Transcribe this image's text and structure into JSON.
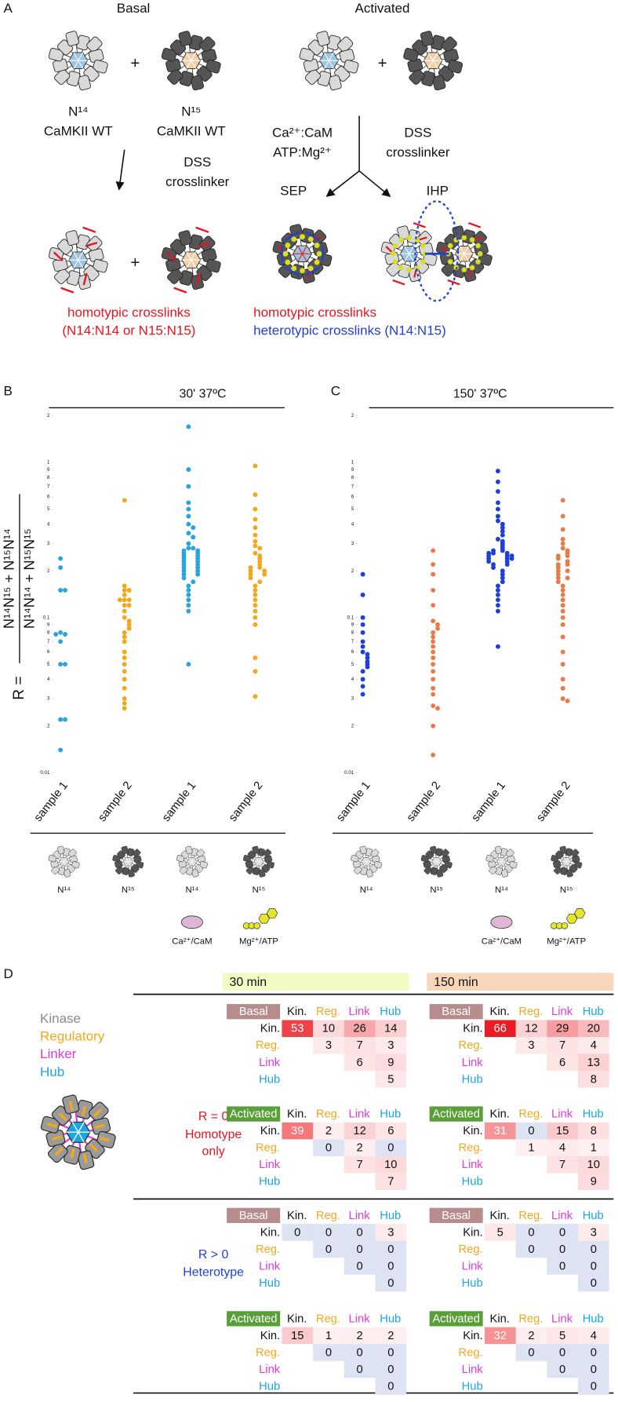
{
  "panel_a": {
    "label": "A",
    "basal": "Basal",
    "activated": "Activated",
    "plus": "+",
    "n14": "N¹⁴",
    "n15": "N¹⁵",
    "wt": "CaMKII WT",
    "dss": "DSS",
    "crosslinker": "crosslinker",
    "cam": "Ca²⁺:CaM",
    "atp": "ATP:Mg²⁺",
    "sep": "SEP",
    "ihp": "IHP",
    "homotypic": "homotypic crosslinks",
    "homotypic_detail": "(N14:N14 or N15:N15)",
    "heterotypic": "heterotypic crosslinks (N14:N15)"
  },
  "chart_data": [
    {
      "type": "scatter",
      "panel": "B",
      "title": "30' 37ºC",
      "log_y": true,
      "ylabel_prefix": "R =",
      "ylabel_numerator": "N¹⁴N¹⁵ + N¹⁵N¹⁴",
      "ylabel_denominator": "N¹⁴N¹⁴ + N¹⁵N¹⁵",
      "ylim": [
        0.01,
        2
      ],
      "yticks": [
        0.01,
        {
          "value": 0.02,
          "label": "2"
        },
        {
          "value": 0.03,
          "label": "3"
        },
        {
          "value": 0.04,
          "label": "4"
        },
        {
          "value": 0.05,
          "label": "5"
        },
        {
          "value": 0.06,
          "label": "6"
        },
        {
          "value": 0.07,
          "label": "7"
        },
        {
          "value": 0.08,
          "label": "8"
        },
        {
          "value": 0.09,
          "label": "9"
        },
        0.1,
        {
          "value": 0.2,
          "label": "2"
        },
        {
          "value": 0.3,
          "label": "3"
        },
        {
          "value": 0.4,
          "label": "4"
        },
        {
          "value": 0.5,
          "label": "5"
        },
        {
          "value": 0.6,
          "label": "6"
        },
        {
          "value": 0.7,
          "label": "7"
        },
        {
          "value": 0.8,
          "label": "8"
        },
        {
          "value": 0.9,
          "label": "9"
        },
        1,
        2
      ],
      "categories": [
        "sample 1",
        "sample 2",
        "sample 1",
        "sample 2"
      ],
      "group_labels": [
        "N¹⁴",
        "N¹⁵",
        "N¹⁴",
        "N¹⁵"
      ],
      "cofactors": [
        "Ca²⁺/CaM",
        "Mg²⁺/ATP"
      ],
      "series": [
        {
          "color": "#2aa3df",
          "values": [
            0.24,
            0.21,
            0.15,
            0.15,
            0.08,
            0.078,
            0.078,
            0.07,
            0.05,
            0.05,
            0.022,
            0.022,
            0.014
          ]
        },
        {
          "color": "#f2a81d",
          "values": [
            0.57,
            0.16,
            0.15,
            0.15,
            0.14,
            0.13,
            0.13,
            0.13,
            0.12,
            0.12,
            0.11,
            0.1,
            0.095,
            0.09,
            0.085,
            0.08,
            0.075,
            0.07,
            0.06,
            0.055,
            0.05,
            0.045,
            0.04,
            0.035,
            0.03,
            0.028,
            0.026
          ]
        },
        {
          "color": "#2aa3df",
          "values": [
            1.7,
            0.9,
            0.7,
            0.55,
            0.5,
            0.45,
            0.4,
            0.38,
            0.35,
            0.33,
            0.3,
            0.28,
            0.28,
            0.27,
            0.27,
            0.26,
            0.26,
            0.25,
            0.25,
            0.24,
            0.24,
            0.23,
            0.23,
            0.22,
            0.22,
            0.21,
            0.21,
            0.2,
            0.2,
            0.19,
            0.19,
            0.18,
            0.17,
            0.16,
            0.15,
            0.14,
            0.13,
            0.12,
            0.11,
            0.05
          ]
        },
        {
          "color": "#f2a81d",
          "values": [
            0.95,
            0.62,
            0.5,
            0.43,
            0.38,
            0.34,
            0.31,
            0.29,
            0.28,
            0.26,
            0.25,
            0.24,
            0.23,
            0.22,
            0.21,
            0.21,
            0.2,
            0.2,
            0.19,
            0.19,
            0.18,
            0.17,
            0.16,
            0.15,
            0.14,
            0.13,
            0.12,
            0.11,
            0.1,
            0.09,
            0.055,
            0.045,
            0.031
          ]
        }
      ]
    },
    {
      "type": "scatter",
      "panel": "C",
      "title": "150'  37ºC",
      "log_y": true,
      "ylim": [
        0.01,
        2
      ],
      "yticks": [
        0.01,
        {
          "value": 0.02,
          "label": "2"
        },
        {
          "value": 0.03,
          "label": "3"
        },
        {
          "value": 0.04,
          "label": "4"
        },
        {
          "value": 0.05,
          "label": "5"
        },
        {
          "value": 0.06,
          "label": "6"
        },
        {
          "value": 0.07,
          "label": "7"
        },
        {
          "value": 0.08,
          "label": "8"
        },
        {
          "value": 0.09,
          "label": "9"
        },
        0.1,
        {
          "value": 0.2,
          "label": "2"
        },
        {
          "value": 0.3,
          "label": "3"
        },
        {
          "value": 0.4,
          "label": "4"
        },
        {
          "value": 0.5,
          "label": "5"
        },
        {
          "value": 0.6,
          "label": "6"
        },
        {
          "value": 0.7,
          "label": "7"
        },
        {
          "value": 0.8,
          "label": "8"
        },
        {
          "value": 0.9,
          "label": "9"
        },
        1,
        2
      ],
      "categories": [
        "sample 1",
        "sample 2",
        "sample 1",
        "sample 2"
      ],
      "group_labels": [
        "N¹⁴",
        "N¹⁵",
        "N¹⁴",
        "N¹⁵"
      ],
      "cofactors": [
        "Ca²⁺/CaM",
        "Mg²⁺/ATP"
      ],
      "series": [
        {
          "color": "#1f3fd6",
          "values": [
            0.19,
            0.14,
            0.1,
            0.09,
            0.08,
            0.07,
            0.065,
            0.06,
            0.058,
            0.055,
            0.052,
            0.05,
            0.048,
            0.045,
            0.04,
            0.036,
            0.032
          ]
        },
        {
          "color": "#e67c48",
          "values": [
            0.27,
            0.22,
            0.19,
            0.15,
            0.12,
            0.095,
            0.09,
            0.085,
            0.08,
            0.075,
            0.07,
            0.065,
            0.06,
            0.055,
            0.05,
            0.045,
            0.04,
            0.035,
            0.032,
            0.027,
            0.026,
            0.02,
            0.013
          ]
        },
        {
          "color": "#1f3fd6",
          "values": [
            0.88,
            0.75,
            0.65,
            0.55,
            0.5,
            0.45,
            0.42,
            0.4,
            0.38,
            0.36,
            0.34,
            0.32,
            0.31,
            0.3,
            0.29,
            0.28,
            0.27,
            0.27,
            0.26,
            0.26,
            0.26,
            0.25,
            0.25,
            0.25,
            0.24,
            0.24,
            0.24,
            0.23,
            0.23,
            0.22,
            0.22,
            0.21,
            0.2,
            0.19,
            0.18,
            0.17,
            0.16,
            0.15,
            0.14,
            0.13,
            0.12,
            0.11,
            0.065
          ]
        },
        {
          "color": "#e67c48",
          "values": [
            0.57,
            0.45,
            0.37,
            0.32,
            0.3,
            0.28,
            0.27,
            0.26,
            0.25,
            0.25,
            0.24,
            0.23,
            0.22,
            0.22,
            0.21,
            0.2,
            0.2,
            0.19,
            0.18,
            0.18,
            0.17,
            0.16,
            0.15,
            0.14,
            0.13,
            0.12,
            0.11,
            0.1,
            0.09,
            0.075,
            0.06,
            0.05,
            0.04,
            0.035,
            0.03,
            0.029
          ]
        }
      ]
    }
  ],
  "panel_d": {
    "label": "D",
    "time_headers": [
      {
        "text": "30 min",
        "color": "#f2fbc3"
      },
      {
        "text": "150 min",
        "color": "#f8d6ba"
      }
    ],
    "legend": [
      {
        "text": "Kinase",
        "color": "#8a8a8a"
      },
      {
        "text": "Regulatory",
        "color": "#f2a81d"
      },
      {
        "text": "Linker",
        "color": "#e03ad8"
      },
      {
        "text": "Hub",
        "color": "#1aa6e0"
      }
    ],
    "sections": [
      {
        "lines": [
          "R = 0",
          "Homotype",
          "only"
        ],
        "color": "#e8141c",
        "tables": [
          {
            "condition": "Basal",
            "columns": [
              "Kin.",
              "Reg.",
              "Link",
              "Hub"
            ],
            "rows": [
              "Kin.",
              "Reg.",
              "Link",
              "Hub"
            ],
            "values": [
              [
                53,
                10,
                26,
                14
              ],
              [
                3,
                7,
                3
              ],
              [
                6,
                9
              ],
              [
                5
              ]
            ]
          },
          {
            "condition": "Basal",
            "columns": [
              "Kin.",
              "Reg.",
              "Link",
              "Hub"
            ],
            "rows": [
              "Kin.",
              "Reg.",
              "Link",
              "Hub"
            ],
            "values": [
              [
                66,
                12,
                29,
                20
              ],
              [
                3,
                7,
                4
              ],
              [
                6,
                13
              ],
              [
                8
              ]
            ]
          },
          {
            "condition": "Activated",
            "columns": [
              "Kin.",
              "Reg.",
              "Link",
              "Hub"
            ],
            "rows": [
              "Kin.",
              "Reg.",
              "Link",
              "Hub"
            ],
            "values": [
              [
                39,
                2,
                12,
                6
              ],
              [
                0,
                2,
                0
              ],
              [
                7,
                10
              ],
              [
                7
              ]
            ]
          },
          {
            "condition": "Activated",
            "columns": [
              "Kin.",
              "Reg.",
              "Link",
              "Hub"
            ],
            "rows": [
              "Kin.",
              "Reg.",
              "Link",
              "Hub"
            ],
            "values": [
              [
                31,
                0,
                15,
                8
              ],
              [
                1,
                4,
                1
              ],
              [
                7,
                10
              ],
              [
                9
              ]
            ]
          }
        ]
      },
      {
        "lines": [
          "R > 0",
          "Heterotype"
        ],
        "color": "#1f3fd6",
        "tables": [
          {
            "condition": "Basal",
            "columns": [
              "Kin.",
              "Reg.",
              "Link",
              "Hub"
            ],
            "rows": [
              "Kin.",
              "Reg.",
              "Link",
              "Hub"
            ],
            "values": [
              [
                0,
                0,
                0,
                3
              ],
              [
                0,
                0,
                0
              ],
              [
                0,
                0
              ],
              [
                0
              ]
            ]
          },
          {
            "condition": "Basal",
            "columns": [
              "Kin.",
              "Reg.",
              "Link",
              "Hub"
            ],
            "rows": [
              "Kin.",
              "Reg.",
              "Link",
              "Hub"
            ],
            "values": [
              [
                5,
                0,
                0,
                3
              ],
              [
                0,
                0,
                0
              ],
              [
                0,
                0
              ],
              [
                0
              ]
            ]
          },
          {
            "condition": "Activated",
            "columns": [
              "Kin.",
              "Reg.",
              "Link",
              "Hub"
            ],
            "rows": [
              "Kin.",
              "Reg.",
              "Link",
              "Hub"
            ],
            "values": [
              [
                15,
                1,
                2,
                2
              ],
              [
                0,
                0,
                0
              ],
              [
                0,
                0
              ],
              [
                0
              ]
            ]
          },
          {
            "condition": "Activated",
            "columns": [
              "Kin.",
              "Reg.",
              "Link",
              "Hub"
            ],
            "rows": [
              "Kin.",
              "Reg.",
              "Link",
              "Hub"
            ],
            "values": [
              [
                32,
                2,
                5,
                4
              ],
              [
                0,
                0,
                0
              ],
              [
                0,
                0
              ],
              [
                0
              ]
            ]
          }
        ]
      }
    ]
  }
}
